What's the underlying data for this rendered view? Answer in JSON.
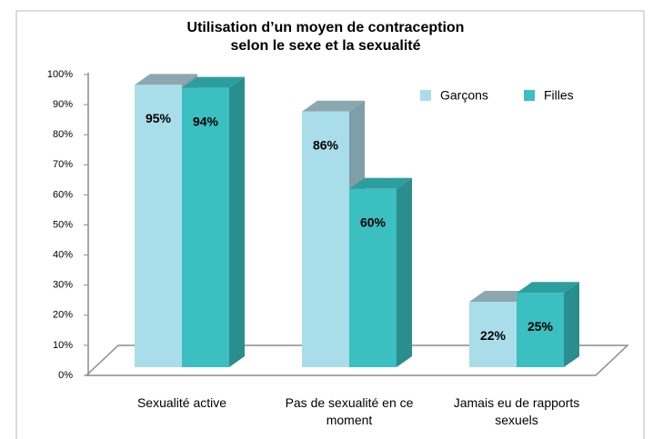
{
  "chart_data": {
    "type": "bar3d",
    "title": [
      "Utilisation d’un moyen de contraception",
      "selon le sexe et la sexualité"
    ],
    "categories": [
      "Sexualité active",
      "Pas de sexualité en ce moment",
      "Jamais eu de rapports sexuels"
    ],
    "series": [
      {
        "name": "Garçons",
        "color": "#a9dde9",
        "top_color": "#8ca7b0",
        "side_color": "#7f9ea8",
        "values": [
          95,
          86,
          22
        ],
        "value_labels": [
          "95%",
          "86%",
          "22%"
        ]
      },
      {
        "name": "Filles",
        "color": "#3cbfc0",
        "top_color": "#2d9e9f",
        "side_color": "#2a8d8e",
        "values": [
          94,
          60,
          25
        ],
        "value_labels": [
          "94%",
          "60%",
          "25%"
        ]
      }
    ],
    "ylim": [
      0,
      100
    ],
    "yticks": [
      {
        "value": 0,
        "label": "0%"
      },
      {
        "value": 10,
        "label": "10%"
      },
      {
        "value": 20,
        "label": "20%"
      },
      {
        "value": 30,
        "label": "30%"
      },
      {
        "value": 40,
        "label": "40%"
      },
      {
        "value": 50,
        "label": "50%"
      },
      {
        "value": 60,
        "label": "60%"
      },
      {
        "value": 70,
        "label": "70%"
      },
      {
        "value": 80,
        "label": "80%"
      },
      {
        "value": 90,
        "label": "90%"
      },
      {
        "value": 100,
        "label": "100%"
      }
    ],
    "legend": "top-right"
  }
}
